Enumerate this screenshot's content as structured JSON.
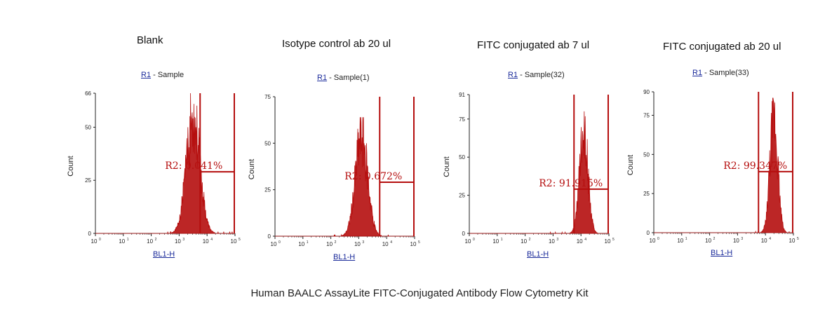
{
  "caption": "Human BAALC AssayLite FITC-Conjugated Antibody Flow Cytometry Kit",
  "chart_data": [
    {
      "type": "histogram",
      "title": "Blank",
      "gate_label": "R1",
      "gate_suffix": "- Sample",
      "xlabel": "BL1-H",
      "ylabel": "Count",
      "x_scale": "log",
      "x_ticks": [
        "10",
        "10",
        "10",
        "10",
        "10",
        "10"
      ],
      "xlim": [
        0,
        5
      ],
      "y_ticks": [
        0,
        25,
        50,
        66
      ],
      "ylim": [
        0,
        66
      ],
      "region": {
        "name": "R2",
        "percent": "0.041%",
        "start": 3.75,
        "end": 5.0,
        "line_level": 29
      },
      "peak": {
        "center": 3.5,
        "width": 0.24,
        "height": 66
      },
      "annotation": "R2: 0.041%"
    },
    {
      "type": "histogram",
      "title": "Isotype control ab 20 ul",
      "gate_label": "R1",
      "gate_suffix": "- Sample(1)",
      "xlabel": "BL1-H",
      "ylabel": "Count",
      "x_scale": "log",
      "x_ticks": [
        "10",
        "10",
        "10",
        "10",
        "10",
        "10"
      ],
      "xlim": [
        0,
        5
      ],
      "y_ticks": [
        0,
        25,
        50,
        75
      ],
      "ylim": [
        0,
        75
      ],
      "region": {
        "name": "R2",
        "percent": "0.672%",
        "start": 3.75,
        "end": 5.0,
        "line_level": 29
      },
      "peak": {
        "center": 3.1,
        "width": 0.22,
        "height": 64
      },
      "annotation": "R2: 0.672%"
    },
    {
      "type": "histogram",
      "title": "FITC conjugated ab 7 ul",
      "gate_label": "R1",
      "gate_suffix": "- Sample(32)",
      "xlabel": "BL1-H",
      "ylabel": "Count",
      "x_scale": "log",
      "x_ticks": [
        "10",
        "10",
        "10",
        "10",
        "10",
        "10"
      ],
      "xlim": [
        0,
        5
      ],
      "y_ticks": [
        0,
        25,
        50,
        75,
        91
      ],
      "ylim": [
        0,
        91
      ],
      "region": {
        "name": "R2",
        "percent": "91.915%",
        "start": 3.75,
        "end": 5.0,
        "line_level": 29
      },
      "peak": {
        "center": 4.1,
        "width": 0.15,
        "height": 80
      },
      "annotation": "R2: 91.915%"
    },
    {
      "type": "histogram",
      "title": "FITC conjugated ab 20 ul",
      "gate_label": "R1",
      "gate_suffix": "- Sample(33)",
      "xlabel": "BL1-H",
      "ylabel": "Count",
      "x_scale": "log",
      "x_ticks": [
        "10",
        "10",
        "10",
        "10",
        "10",
        "10"
      ],
      "xlim": [
        0,
        5
      ],
      "y_ticks": [
        0,
        25,
        50,
        75,
        90
      ],
      "ylim": [
        0,
        90
      ],
      "region": {
        "name": "R2",
        "percent": "99.347%",
        "start": 3.75,
        "end": 5.0,
        "line_level": 39
      },
      "peak": {
        "center": 4.3,
        "width": 0.14,
        "height": 86
      },
      "annotation": "R2: 99.347%"
    }
  ]
}
